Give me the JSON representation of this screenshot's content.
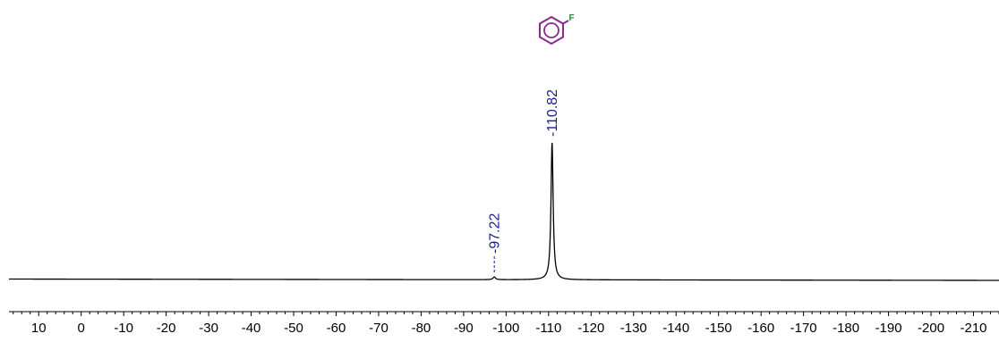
{
  "chart_data": {
    "type": "line",
    "xlabel": "",
    "ylabel": "",
    "xlim": [
      17,
      -216
    ],
    "x_reversed": true,
    "x_ticks": [
      10,
      0,
      -10,
      -20,
      -30,
      -40,
      -50,
      -60,
      -70,
      -80,
      -90,
      -100,
      -110,
      -120,
      -130,
      -140,
      -150,
      -160,
      -170,
      -180,
      -190,
      -200,
      -210
    ],
    "x_tick_labels": [
      "10",
      "0",
      "-10",
      "-20",
      "-30",
      "-40",
      "-50",
      "-60",
      "-70",
      "-80",
      "-90",
      "-100",
      "-110",
      "-120",
      "-130",
      "-140",
      "-150",
      "-160",
      "-170",
      "-180",
      "-190",
      "-200",
      "-210"
    ],
    "minor_tick_step": 2,
    "grid": false,
    "series": [
      {
        "peaks": [
          {
            "x": -97.22,
            "height": 0.02,
            "width": 0.35
          },
          {
            "x": -110.82,
            "height": 1.0,
            "width": 0.3
          }
        ]
      }
    ],
    "peak_labels": [
      {
        "x": -97.22,
        "text": "-97.22"
      },
      {
        "x": -110.82,
        "text": "-110.82"
      }
    ],
    "annotations": [
      {
        "type": "structure",
        "name": "fluorobenzene",
        "atom_label": "F"
      }
    ]
  },
  "colors": {
    "spectrum": "#000000",
    "peak_label": "#1a1a9c",
    "molecule": "#8b2a8b",
    "fluorine": "#2a8a2a",
    "axis": "#000000"
  }
}
